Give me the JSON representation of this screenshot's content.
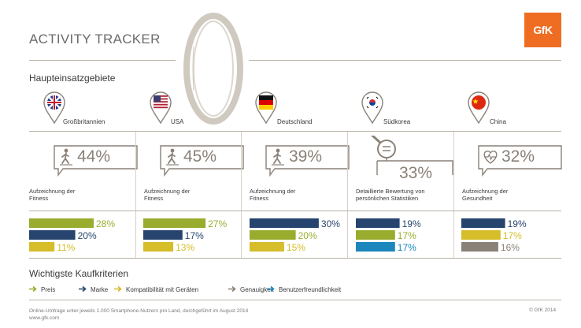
{
  "title": "ACTIVITY TRACKER",
  "logo_text": "GfK",
  "section_top": "Haupteinsatzgebiete",
  "section_bottom": "Wichtigste Kaufkriterien",
  "colors": {
    "Preis": "#9aac2e",
    "Marke": "#27446e",
    "Kompatibilität mit Geräten": "#d6bd2a",
    "Genauigkeit": "#8a8178",
    "Benutzerfreundlichkeit": "#1b87bd"
  },
  "countries": [
    {
      "name": "Großbritannien",
      "flag": "uk-flag-icon",
      "icon": "walking-person-icon",
      "pct_label": "44%",
      "desc_lines": [
        "Aufzeichnung der",
        "Fitness"
      ]
    },
    {
      "name": "USA",
      "flag": "us-flag-icon",
      "icon": "walking-person-icon",
      "pct_label": "45%",
      "desc_lines": [
        "Aufzeichnung der",
        "Fitness"
      ]
    },
    {
      "name": "Deutschland",
      "flag": "germany-flag-icon",
      "icon": "walking-person-icon",
      "pct_label": "39%",
      "desc_lines": [
        "Aufzeichnung der",
        "Fitness"
      ]
    },
    {
      "name": "Südkorea",
      "flag": "south-korea-flag-icon",
      "icon": "magnifier-icon",
      "pct_label": "33%",
      "desc_lines": [
        "Detaillierte Bewertung von",
        "persönlichen Statistiken"
      ]
    },
    {
      "name": "China",
      "flag": "china-flag-icon",
      "icon": "heart-pulse-icon",
      "pct_label": "32%",
      "desc_lines": [
        "Aufzeichnung der",
        "Gesundheit"
      ]
    }
  ],
  "chart_data": {
    "type": "bar",
    "orientation": "horizontal",
    "legend_position": "bottom",
    "categories": [
      "Großbritannien",
      "USA",
      "Deutschland",
      "Südkorea",
      "China"
    ],
    "groups": [
      {
        "country": "Großbritannien",
        "bars": [
          {
            "criterion": "Preis",
            "value": 28,
            "label": "28%"
          },
          {
            "criterion": "Marke",
            "value": 20,
            "label": "20%"
          },
          {
            "criterion": "Kompatibilität mit Geräten",
            "value": 11,
            "label": "11%"
          }
        ]
      },
      {
        "country": "USA",
        "bars": [
          {
            "criterion": "Preis",
            "value": 27,
            "label": "27%"
          },
          {
            "criterion": "Marke",
            "value": 17,
            "label": "17%"
          },
          {
            "criterion": "Kompatibilität mit Geräten",
            "value": 13,
            "label": "13%"
          }
        ]
      },
      {
        "country": "Deutschland",
        "bars": [
          {
            "criterion": "Marke",
            "value": 30,
            "label": "30%"
          },
          {
            "criterion": "Preis",
            "value": 20,
            "label": "20%"
          },
          {
            "criterion": "Kompatibilität mit Geräten",
            "value": 15,
            "label": "15%"
          }
        ]
      },
      {
        "country": "Südkorea",
        "bars": [
          {
            "criterion": "Marke",
            "value": 19,
            "label": "19%"
          },
          {
            "criterion": "Preis",
            "value": 17,
            "label": "17%"
          },
          {
            "criterion": "Benutzerfreundlichkeit",
            "value": 17,
            "label": "17%"
          }
        ]
      },
      {
        "country": "China",
        "bars": [
          {
            "criterion": "Marke",
            "value": 19,
            "label": "19%"
          },
          {
            "criterion": "Kompatibilität mit Geräten",
            "value": 17,
            "label": "17%"
          },
          {
            "criterion": "Genauigkeit",
            "value": 16,
            "label": "16%"
          }
        ]
      }
    ],
    "legend": [
      "Preis",
      "Marke",
      "Kompatibilität mit Geräten",
      "Genauigkeit",
      "Benutzerfreundlichkeit"
    ]
  },
  "footnote_lines": [
    "Online-Umfrage unter jeweils 1.000 Smartphone-Nutzern pro Land, durchgeführt im August 2014",
    "www.gfk.com"
  ],
  "copyright": "© GfK 2014"
}
